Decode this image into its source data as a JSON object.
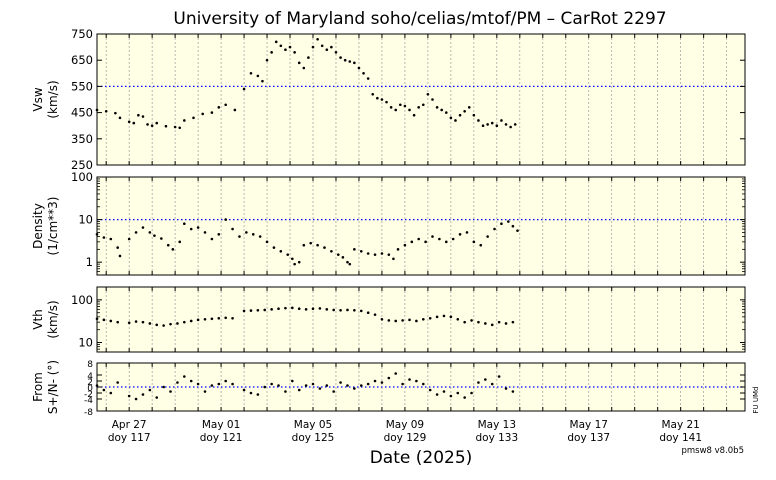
{
  "chart_data": {
    "type": "scatter",
    "title": "University of Maryland  soho/celias/mtof/PM – CarRot 2297",
    "xlabel": "Date (2025)",
    "xlim": [
      115.6,
      143.8
    ],
    "x_ticks": [
      {
        "date": "Apr 27",
        "doy": "doy 117",
        "x": 117
      },
      {
        "date": "May 01",
        "doy": "doy 121",
        "x": 121
      },
      {
        "date": "May 05",
        "doy": "doy 125",
        "x": 125
      },
      {
        "date": "May 09",
        "doy": "doy 129",
        "x": 129
      },
      {
        "date": "May 13",
        "doy": "doy 133",
        "x": 133
      },
      {
        "date": "May 17",
        "doy": "doy 137",
        "x": 137
      },
      {
        "date": "May 21",
        "doy": "doy 141",
        "x": 141
      }
    ],
    "version_label": "pmsw8 v8.0b5",
    "side_label": "FU UMd",
    "background_color": "#ffffe6",
    "marker_color": "#000000",
    "reference_line_color": "#0000ff",
    "grid": true,
    "panels": [
      {
        "name": "vsw",
        "ylabel": "Vsw\n(km/s)",
        "scale": "linear",
        "ylim": [
          250,
          750
        ],
        "yticks": [
          "250",
          "350",
          "450",
          "550",
          "650",
          "750"
        ],
        "reference": 550,
        "data": [
          [
            115.6,
            460
          ],
          [
            116.0,
            455
          ],
          [
            116.4,
            448
          ],
          [
            116.6,
            430
          ],
          [
            117.0,
            415
          ],
          [
            117.2,
            410
          ],
          [
            117.4,
            440
          ],
          [
            117.6,
            435
          ],
          [
            117.8,
            405
          ],
          [
            118.0,
            400
          ],
          [
            118.2,
            410
          ],
          [
            118.6,
            398
          ],
          [
            119.0,
            395
          ],
          [
            119.2,
            392
          ],
          [
            119.4,
            420
          ],
          [
            119.8,
            430
          ],
          [
            120.2,
            445
          ],
          [
            120.6,
            450
          ],
          [
            120.9,
            470
          ],
          [
            121.2,
            480
          ],
          [
            121.6,
            460
          ],
          [
            122.0,
            540
          ],
          [
            122.3,
            600
          ],
          [
            122.6,
            590
          ],
          [
            122.8,
            570
          ],
          [
            123.0,
            650
          ],
          [
            123.2,
            680
          ],
          [
            123.4,
            720
          ],
          [
            123.6,
            705
          ],
          [
            123.8,
            690
          ],
          [
            124.0,
            700
          ],
          [
            124.2,
            680
          ],
          [
            124.4,
            640
          ],
          [
            124.6,
            620
          ],
          [
            124.8,
            660
          ],
          [
            125.0,
            700
          ],
          [
            125.2,
            730
          ],
          [
            125.4,
            705
          ],
          [
            125.6,
            690
          ],
          [
            125.8,
            700
          ],
          [
            126.0,
            680
          ],
          [
            126.2,
            660
          ],
          [
            126.4,
            650
          ],
          [
            126.6,
            645
          ],
          [
            126.8,
            640
          ],
          [
            127.0,
            620
          ],
          [
            127.2,
            600
          ],
          [
            127.4,
            580
          ],
          [
            127.6,
            520
          ],
          [
            127.8,
            505
          ],
          [
            128.0,
            500
          ],
          [
            128.2,
            490
          ],
          [
            128.4,
            470
          ],
          [
            128.6,
            460
          ],
          [
            128.8,
            480
          ],
          [
            129.0,
            475
          ],
          [
            129.2,
            460
          ],
          [
            129.4,
            440
          ],
          [
            129.6,
            470
          ],
          [
            129.8,
            480
          ],
          [
            130.0,
            520
          ],
          [
            130.2,
            500
          ],
          [
            130.4,
            470
          ],
          [
            130.6,
            460
          ],
          [
            130.8,
            450
          ],
          [
            131.0,
            430
          ],
          [
            131.2,
            420
          ],
          [
            131.4,
            440
          ],
          [
            131.6,
            455
          ],
          [
            131.8,
            470
          ],
          [
            132.0,
            440
          ],
          [
            132.2,
            420
          ],
          [
            132.4,
            400
          ],
          [
            132.6,
            405
          ],
          [
            132.8,
            410
          ],
          [
            133.0,
            400
          ],
          [
            133.2,
            420
          ],
          [
            133.4,
            405
          ],
          [
            133.6,
            395
          ],
          [
            133.8,
            405
          ]
        ]
      },
      {
        "name": "density",
        "ylabel": "Density\n(1/cm**3)",
        "scale": "log",
        "ylim": [
          0.5,
          100
        ],
        "yticks": [
          "1",
          "10",
          "100"
        ],
        "ytick_values": [
          1,
          10,
          100
        ],
        "reference": 10,
        "data": [
          [
            115.6,
            4.5
          ],
          [
            115.9,
            3.8
          ],
          [
            116.2,
            3.5
          ],
          [
            116.5,
            2.2
          ],
          [
            116.6,
            1.4
          ],
          [
            117.0,
            3.5
          ],
          [
            117.3,
            5.0
          ],
          [
            117.6,
            6.5
          ],
          [
            117.9,
            5.0
          ],
          [
            118.1,
            4.2
          ],
          [
            118.4,
            3.6
          ],
          [
            118.7,
            2.5
          ],
          [
            118.9,
            2.0
          ],
          [
            119.2,
            3.0
          ],
          [
            119.4,
            8.0
          ],
          [
            119.7,
            6.0
          ],
          [
            120.0,
            6.5
          ],
          [
            120.3,
            5.0
          ],
          [
            120.6,
            3.5
          ],
          [
            120.9,
            4.5
          ],
          [
            121.2,
            10.0
          ],
          [
            121.5,
            6.0
          ],
          [
            121.8,
            4.0
          ],
          [
            122.1,
            5.0
          ],
          [
            122.4,
            4.5
          ],
          [
            122.7,
            4.0
          ],
          [
            123.0,
            3.0
          ],
          [
            123.3,
            2.2
          ],
          [
            123.6,
            1.8
          ],
          [
            123.9,
            1.5
          ],
          [
            124.1,
            1.2
          ],
          [
            124.2,
            0.9
          ],
          [
            124.4,
            1.0
          ],
          [
            124.6,
            2.5
          ],
          [
            124.9,
            2.8
          ],
          [
            125.2,
            2.5
          ],
          [
            125.5,
            2.2
          ],
          [
            125.8,
            1.8
          ],
          [
            126.1,
            1.5
          ],
          [
            126.3,
            1.3
          ],
          [
            126.5,
            1.0
          ],
          [
            126.6,
            0.9
          ],
          [
            126.8,
            2.0
          ],
          [
            127.1,
            1.8
          ],
          [
            127.4,
            1.6
          ],
          [
            127.7,
            1.5
          ],
          [
            128.0,
            1.6
          ],
          [
            128.3,
            1.5
          ],
          [
            128.5,
            1.2
          ],
          [
            128.7,
            2.0
          ],
          [
            129.0,
            2.5
          ],
          [
            129.3,
            3.0
          ],
          [
            129.6,
            3.5
          ],
          [
            129.9,
            3.0
          ],
          [
            130.2,
            4.0
          ],
          [
            130.5,
            3.5
          ],
          [
            130.8,
            3.0
          ],
          [
            131.1,
            3.5
          ],
          [
            131.4,
            4.5
          ],
          [
            131.7,
            5.0
          ],
          [
            132.0,
            3.0
          ],
          [
            132.3,
            2.5
          ],
          [
            132.6,
            4.0
          ],
          [
            132.9,
            6.0
          ],
          [
            133.2,
            8.0
          ],
          [
            133.5,
            9.0
          ],
          [
            133.7,
            7.0
          ],
          [
            133.9,
            5.5
          ]
        ]
      },
      {
        "name": "vth",
        "ylabel": "Vth\n(km/s)",
        "scale": "log",
        "ylim": [
          6,
          200
        ],
        "yticks": [
          "10",
          "100"
        ],
        "ytick_values": [
          10,
          100
        ],
        "reference": null,
        "data": [
          [
            115.6,
            36
          ],
          [
            115.9,
            34
          ],
          [
            116.2,
            32
          ],
          [
            116.5,
            30
          ],
          [
            117.0,
            29
          ],
          [
            117.3,
            31
          ],
          [
            117.6,
            30
          ],
          [
            117.9,
            28
          ],
          [
            118.2,
            26
          ],
          [
            118.5,
            25
          ],
          [
            118.8,
            27
          ],
          [
            119.1,
            28
          ],
          [
            119.4,
            30
          ],
          [
            119.7,
            32
          ],
          [
            120.0,
            34
          ],
          [
            120.3,
            35
          ],
          [
            120.6,
            36
          ],
          [
            120.9,
            37
          ],
          [
            121.2,
            38
          ],
          [
            121.5,
            37
          ],
          [
            122.0,
            55
          ],
          [
            122.3,
            56
          ],
          [
            122.6,
            57
          ],
          [
            122.9,
            58
          ],
          [
            123.2,
            60
          ],
          [
            123.5,
            62
          ],
          [
            123.8,
            64
          ],
          [
            124.1,
            65
          ],
          [
            124.4,
            62
          ],
          [
            124.7,
            60
          ],
          [
            125.0,
            62
          ],
          [
            125.3,
            63
          ],
          [
            125.6,
            60
          ],
          [
            125.9,
            58
          ],
          [
            126.2,
            57
          ],
          [
            126.5,
            58
          ],
          [
            126.8,
            57
          ],
          [
            127.1,
            55
          ],
          [
            127.4,
            50
          ],
          [
            127.7,
            45
          ],
          [
            128.0,
            35
          ],
          [
            128.3,
            33
          ],
          [
            128.6,
            32
          ],
          [
            128.9,
            33
          ],
          [
            129.2,
            34
          ],
          [
            129.5,
            32
          ],
          [
            129.8,
            35
          ],
          [
            130.1,
            37
          ],
          [
            130.4,
            40
          ],
          [
            130.7,
            42
          ],
          [
            131.0,
            40
          ],
          [
            131.3,
            35
          ],
          [
            131.6,
            30
          ],
          [
            131.9,
            33
          ],
          [
            132.2,
            30
          ],
          [
            132.5,
            28
          ],
          [
            132.8,
            26
          ],
          [
            133.1,
            30
          ],
          [
            133.4,
            28
          ],
          [
            133.7,
            30
          ]
        ]
      },
      {
        "name": "flow_angle",
        "ylabel": "From\nS+/N- (°)",
        "scale": "linear",
        "ylim": [
          -8,
          8
        ],
        "yticks": [
          "-8",
          "-4",
          "-2",
          "0",
          "2",
          "4",
          "8"
        ],
        "ytick_values": [
          -8,
          -4,
          -2,
          0,
          2,
          4,
          8
        ],
        "reference": 0,
        "data": [
          [
            115.6,
            0.5
          ],
          [
            115.9,
            -1.0
          ],
          [
            116.2,
            -2.0
          ],
          [
            116.5,
            1.5
          ],
          [
            117.0,
            -3.0
          ],
          [
            117.3,
            -4.0
          ],
          [
            117.6,
            -2.5
          ],
          [
            117.9,
            -1.0
          ],
          [
            118.2,
            -3.5
          ],
          [
            118.5,
            0.0
          ],
          [
            118.8,
            -1.5
          ],
          [
            119.1,
            1.5
          ],
          [
            119.4,
            3.5
          ],
          [
            119.7,
            2.0
          ],
          [
            120.0,
            1.0
          ],
          [
            120.3,
            -1.5
          ],
          [
            120.6,
            0.5
          ],
          [
            120.9,
            1.0
          ],
          [
            121.2,
            2.0
          ],
          [
            121.5,
            1.0
          ],
          [
            122.0,
            -1.0
          ],
          [
            122.3,
            -2.0
          ],
          [
            122.6,
            -2.5
          ],
          [
            122.9,
            0.0
          ],
          [
            123.2,
            1.0
          ],
          [
            123.5,
            0.5
          ],
          [
            123.8,
            -1.5
          ],
          [
            124.1,
            2.0
          ],
          [
            124.4,
            -1.0
          ],
          [
            124.7,
            0.5
          ],
          [
            125.0,
            1.0
          ],
          [
            125.3,
            -0.5
          ],
          [
            125.6,
            0.5
          ],
          [
            125.9,
            -1.5
          ],
          [
            126.2,
            1.5
          ],
          [
            126.5,
            0.5
          ],
          [
            126.8,
            -0.5
          ],
          [
            127.1,
            0.5
          ],
          [
            127.4,
            1.0
          ],
          [
            127.7,
            2.0
          ],
          [
            128.0,
            1.5
          ],
          [
            128.3,
            3.0
          ],
          [
            128.6,
            4.5
          ],
          [
            128.9,
            1.0
          ],
          [
            129.2,
            2.5
          ],
          [
            129.5,
            2.0
          ],
          [
            129.8,
            1.0
          ],
          [
            130.1,
            -1.0
          ],
          [
            130.4,
            -2.5
          ],
          [
            130.7,
            -1.5
          ],
          [
            131.0,
            -3.0
          ],
          [
            131.3,
            -2.0
          ],
          [
            131.6,
            -3.5
          ],
          [
            131.9,
            -2.0
          ],
          [
            132.2,
            1.5
          ],
          [
            132.5,
            2.5
          ],
          [
            132.8,
            1.0
          ],
          [
            133.1,
            3.5
          ],
          [
            133.4,
            -0.5
          ],
          [
            133.7,
            -1.5
          ]
        ]
      }
    ]
  }
}
